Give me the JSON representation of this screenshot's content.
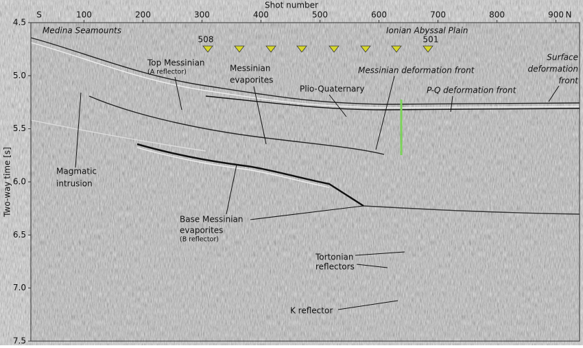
{
  "chart_data": {
    "type": "seismic",
    "xlabel": "Shot number",
    "ylabel": "Two-way time [s]",
    "xlim": [
      10,
      940
    ],
    "xticks": [
      100,
      200,
      300,
      400,
      500,
      600,
      700,
      800,
      900
    ],
    "ylim": [
      4.5,
      7.5
    ],
    "yticks": [
      4.5,
      {
        "value": 5,
        "label": "5.0"
      },
      5.5,
      {
        "value": 6,
        "label": "6.0"
      },
      6.5,
      {
        "value": 7,
        "label": "7.0"
      },
      7.5
    ],
    "ends": [
      "S",
      "N"
    ],
    "shot_labels": [
      "508",
      "501"
    ],
    "annotations": [
      [
        "Medina Seamounts"
      ],
      [
        "Ionian Abyssal Plain"
      ],
      [
        "Surface",
        "deformation",
        "front"
      ],
      [
        "Top Messinian",
        "(A reflector)"
      ],
      [
        "Messinian",
        "evaporites"
      ],
      [
        "Messinian deformation front"
      ],
      [
        "Plio-Quaternary"
      ],
      [
        "P-Q deformation front"
      ],
      [
        "Magmatic",
        "intrusion"
      ],
      [
        "Base Messinian",
        "evaporites",
        "(B reflector)"
      ],
      [
        "Tortonian",
        "reflectors"
      ],
      [
        "K  reflector"
      ]
    ]
  }
}
